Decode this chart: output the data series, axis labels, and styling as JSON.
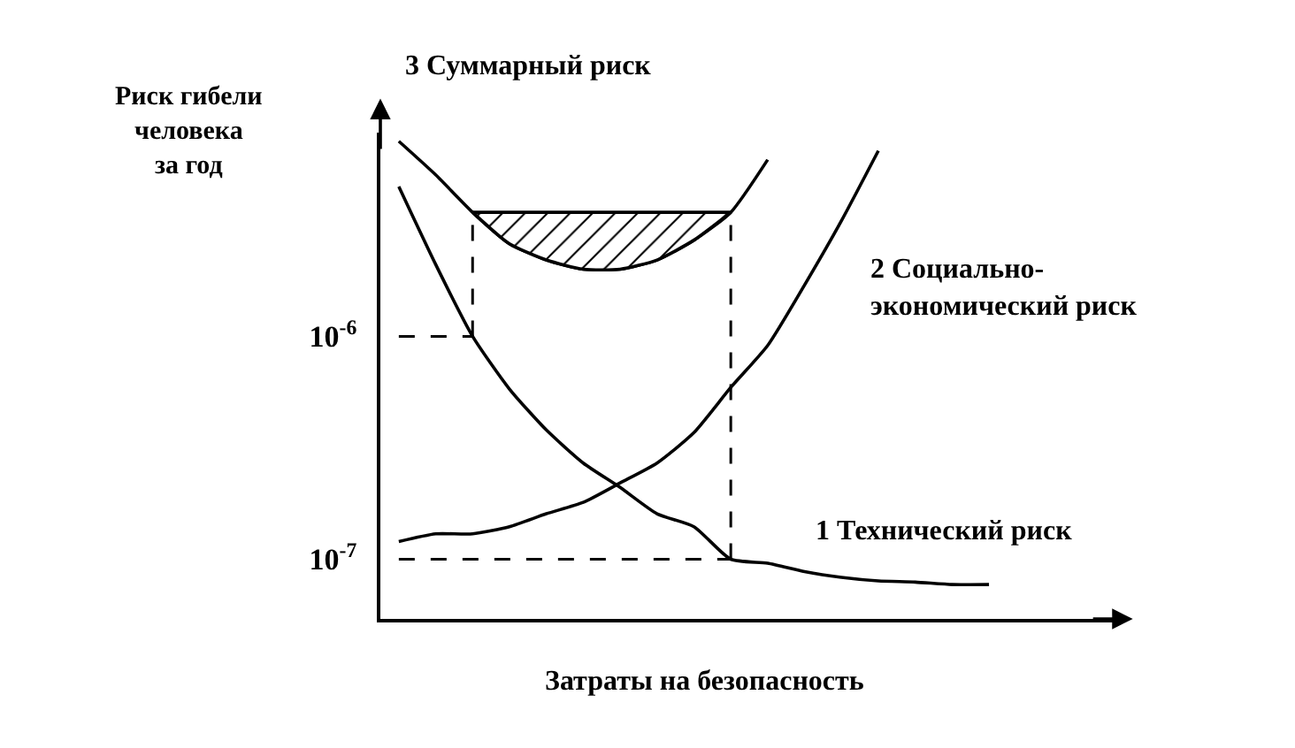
{
  "chart_data": {
    "type": "line",
    "log": "y",
    "tick_labels": "y",
    "ylabel": "Риск гибели\nчеловека\nза год",
    "xlabel": "Затраты на безопасность",
    "categories": [
      null,
      null,
      null,
      null,
      null,
      null,
      null,
      null,
      null,
      null,
      null,
      null,
      null,
      null,
      null,
      null,
      null,
      null,
      null,
      null
    ],
    "ylim": [
      5.4e-08,
      8.2e-06
    ],
    "yticks": [
      {
        "value": 1e-06,
        "label": "10$^{-6}$"
      },
      {
        "value": 1e-07,
        "label": "10$^{-7}$"
      }
    ],
    "series": [
      {
        "name": "1 Технический риск",
        "color": "#000000",
        "values": [
          4.7e-06,
          2.1e-06,
          1e-06,
          5.8e-07,
          3.8e-07,
          2.7e-07,
          2.1e-07,
          1.6e-07,
          1.4e-07,
          1e-07,
          9.6e-08,
          8.8e-08,
          8.3e-08,
          8e-08,
          7.9e-08,
          7.7e-08,
          7.7e-08,
          null,
          null,
          null
        ]
      },
      {
        "name": "2 Социально-\nэкономический риск",
        "color": "#000000",
        "values": [
          1.2e-07,
          1.3e-07,
          1.3e-07,
          1.4e-07,
          1.6e-07,
          1.8e-07,
          2.2e-07,
          2.7e-07,
          3.7e-07,
          5.9e-07,
          9.1e-07,
          1.7e-06,
          3.3e-06,
          6.8e-06,
          null,
          null,
          null,
          null,
          null,
          null
        ]
      },
      {
        "name": "3 Суммарный риск",
        "color": "#000000",
        "values": [
          7.5e-06,
          5.3e-06,
          3.6e-06,
          2.6e-06,
          2.2e-06,
          2e-06,
          2e-06,
          2.2e-06,
          2.7e-06,
          3.6e-06,
          6.2e-06,
          null,
          null,
          null,
          null,
          null,
          null,
          null,
          null,
          null
        ]
      },
      {
        "type": "area",
        "color": "#000000",
        "values": [
          null,
          null,
          3.6e-06,
          3.6e-06,
          3.6e-06,
          3.6e-06,
          3.6e-06,
          3.6e-06,
          3.6e-06,
          3.6e-06,
          null,
          null,
          null,
          null,
          null,
          null,
          null,
          null,
          null,
          null
        ]
      },
      {
        "type": "line",
        "line_style": "dashed",
        "color": "#000000",
        "values": [
          1e-06,
          1e-06,
          1e-06,
          null,
          null,
          null,
          null,
          null,
          null,
          null,
          null,
          null,
          null,
          null,
          null,
          null,
          null,
          null,
          null,
          null
        ]
      },
      {
        "type": "line",
        "line_style": "dashed",
        "color": "#000000",
        "values": [
          1e-07,
          1e-07,
          1e-07,
          1e-07,
          1e-07,
          1e-07,
          1e-07,
          1e-07,
          1e-07,
          1e-07,
          null,
          null,
          null,
          null,
          null,
          null,
          null,
          null,
          null,
          null
        ]
      }
    ]
  }
}
